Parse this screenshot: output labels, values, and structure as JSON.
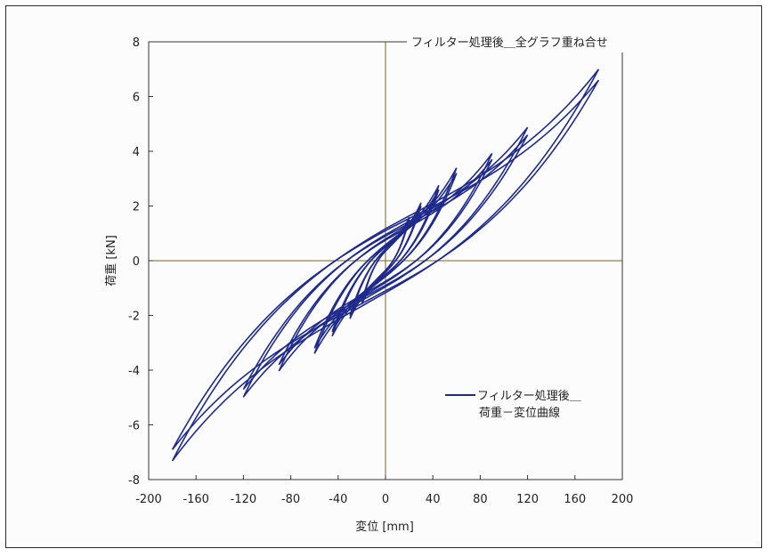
{
  "chart_data": {
    "type": "line",
    "title": "フィルター処理後＿全グラフ重ね合せ",
    "xlabel": "変位 [mm]",
    "ylabel": "荷重 [kN]",
    "xlim": [
      -200,
      200
    ],
    "ylim": [
      -8,
      8
    ],
    "x_ticks": [
      "-200",
      "-160",
      "-120",
      "-80",
      "-40",
      "0",
      "40",
      "80",
      "120",
      "160",
      "200"
    ],
    "y_ticks": [
      "8",
      "6",
      "4",
      "2",
      "0",
      "-2",
      "-4",
      "-6",
      "-8"
    ],
    "grid": false,
    "legend_position": "lower-right",
    "colors": {
      "series": "#1e2a8c",
      "zero_lines": "#7a6420",
      "axes": "#333333"
    },
    "series": [
      {
        "name": "フィルター処理後＿\n荷重－変位曲線",
        "loops": [
          {
            "amplitude": 20,
            "peak_load": 1.5,
            "valley_load": -1.5,
            "width": 0.35
          },
          {
            "amplitude": 30,
            "peak_load": 2.0,
            "valley_load": -2.0,
            "width": 0.4
          },
          {
            "amplitude": 45,
            "peak_load": 2.6,
            "valley_load": -2.6,
            "width": 0.5
          },
          {
            "amplitude": 60,
            "peak_load": 3.2,
            "valley_load": -3.2,
            "width": 0.55
          },
          {
            "amplitude": 90,
            "peak_load": 3.7,
            "valley_load": -3.8,
            "width": 0.75
          },
          {
            "amplitude": 120,
            "peak_load": 4.6,
            "valley_load": -4.7,
            "width": 0.9
          },
          {
            "amplitude": 180,
            "peak_load": 6.6,
            "valley_load": -6.9,
            "width": 1.1
          }
        ]
      }
    ]
  }
}
